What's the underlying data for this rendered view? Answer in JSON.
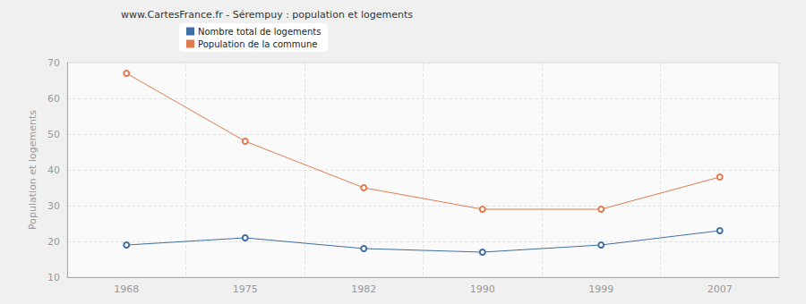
{
  "chart_data": {
    "type": "line",
    "title": "www.CartesFrance.fr - Sérempuy : population et logements",
    "y_label": "Population et logements",
    "categories": [
      "1968",
      "1975",
      "1982",
      "1990",
      "1999",
      "2007"
    ],
    "series": [
      {
        "name": "Nombre total de logements",
        "color": "#3e6fa3",
        "values": [
          19,
          21,
          18,
          17,
          19,
          23
        ]
      },
      {
        "name": "Population de la commune",
        "color": "#e07b4f",
        "values": [
          67,
          48,
          35,
          29,
          29,
          38
        ]
      }
    ],
    "ylim": [
      10,
      70
    ],
    "yticks": [
      10,
      20,
      30,
      40,
      50,
      60,
      70
    ],
    "grid": true,
    "legend": "top-left",
    "marker": "circle",
    "line_style": "solid"
  }
}
